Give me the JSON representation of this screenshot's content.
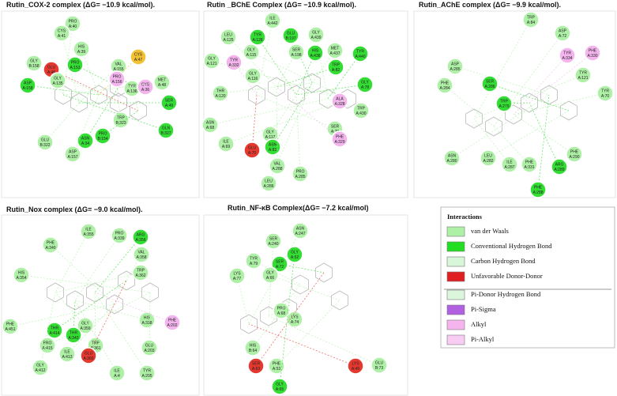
{
  "panels": [
    {
      "title": "Rutin_COX-2 complex (ΔG= −10.9 kcal/mol).",
      "residues": [
        {
          "name": "PRO",
          "id": "A:40",
          "color": "#aef0a6"
        },
        {
          "name": "CYS",
          "id": "A:41",
          "color": "#aef0a6"
        },
        {
          "name": "HIS",
          "id": "A:39",
          "color": "#aef0a6"
        },
        {
          "name": "GLY",
          "id": "B:158",
          "color": "#aef0a6"
        },
        {
          "name": "GLU",
          "id": "A:46",
          "color": "#e53930"
        },
        {
          "name": "PRO",
          "id": "A:153",
          "color": "#33dd33"
        },
        {
          "name": "GLY",
          "id": "A:135",
          "color": "#aef0a6"
        },
        {
          "name": "VAL",
          "id": "A:155",
          "color": "#aef0a6"
        },
        {
          "name": "CYS",
          "id": "A:47",
          "color": "#f2c233"
        },
        {
          "name": "PRO",
          "id": "A:156",
          "color": "#f4b4ee"
        },
        {
          "name": "TYR",
          "id": "A:136",
          "color": "#aef0a6"
        },
        {
          "name": "CYS",
          "id": "A:36",
          "color": "#f4b4ee"
        },
        {
          "name": "MET",
          "id": "A:48",
          "color": "#aef0a6"
        },
        {
          "name": "SER",
          "id": "A:49",
          "color": "#33dd33"
        },
        {
          "name": "ASP",
          "id": "A:158",
          "color": "#33dd33"
        },
        {
          "name": "TRP",
          "id": "B:323",
          "color": "#aef0a6"
        },
        {
          "name": "PRO",
          "id": "B:154",
          "color": "#33dd33"
        },
        {
          "name": "ASN",
          "id": "A:34",
          "color": "#33dd33"
        },
        {
          "name": "GLN",
          "id": "B:327",
          "color": "#33dd33"
        },
        {
          "name": "GLU",
          "id": "B:322",
          "color": "#aef0a6"
        },
        {
          "name": "ASP",
          "id": "A:157",
          "color": "#aef0a6"
        }
      ]
    },
    {
      "title": "Rutin _BChE Complex (ΔG= −10.9 kcal/mol).",
      "residues": [
        {
          "name": "ILE",
          "id": "A:442",
          "color": "#aef0a6"
        },
        {
          "name": "LEU",
          "id": "A:125",
          "color": "#aef0a6"
        },
        {
          "name": "TYR",
          "id": "A:128",
          "color": "#33dd33"
        },
        {
          "name": "GLU",
          "id": "B:197",
          "color": "#33dd33"
        },
        {
          "name": "GLY",
          "id": "A:439",
          "color": "#aef0a6"
        },
        {
          "name": "GLY",
          "id": "A:115",
          "color": "#aef0a6"
        },
        {
          "name": "TYR",
          "id": "A:332",
          "color": "#f4b4ee"
        },
        {
          "name": "SER",
          "id": "A:198",
          "color": "#aef0a6"
        },
        {
          "name": "HIS",
          "id": "A:438",
          "color": "#33dd33"
        },
        {
          "name": "MET",
          "id": "A:437",
          "color": "#aef0a6"
        },
        {
          "name": "TYR",
          "id": "A:440",
          "color": "#33dd33"
        },
        {
          "name": "GLY",
          "id": "A:121",
          "color": "#aef0a6"
        },
        {
          "name": "GLY",
          "id": "A:116",
          "color": "#aef0a6"
        },
        {
          "name": "TRP",
          "id": "A:82",
          "color": "#33dd33"
        },
        {
          "name": "GLY",
          "id": "A:78",
          "color": "#33dd33"
        },
        {
          "name": "THR",
          "id": "A:120",
          "color": "#aef0a6"
        },
        {
          "name": "TRP",
          "id": "A:430",
          "color": "#aef0a6"
        },
        {
          "name": "ALA",
          "id": "A:328",
          "color": "#f4b4ee"
        },
        {
          "name": "SER",
          "id": "A:79",
          "color": "#aef0a6"
        },
        {
          "name": "PHE",
          "id": "A:329",
          "color": "#f4b4ee"
        },
        {
          "name": "GLY",
          "id": "A:117",
          "color": "#aef0a6"
        },
        {
          "name": "ASN",
          "id": "A:83",
          "color": "#33dd33"
        },
        {
          "name": "ASN",
          "id": "A:68",
          "color": "#aef0a6"
        },
        {
          "name": "ILE",
          "id": "A:69",
          "color": "#aef0a6"
        },
        {
          "name": "GLU",
          "id": "A:70",
          "color": "#e53930"
        },
        {
          "name": "VAL",
          "id": "A:288",
          "color": "#aef0a6"
        },
        {
          "name": "PRO",
          "id": "A:285",
          "color": "#aef0a6"
        },
        {
          "name": "LEU",
          "id": "A:286",
          "color": "#aef0a6"
        }
      ]
    },
    {
      "title": "Rutin_AChE complex (ΔG= −9.9 kcal/mol).",
      "residues": [
        {
          "name": "TRP",
          "id": "A:84",
          "color": "#aef0a6"
        },
        {
          "name": "ASP",
          "id": "A:72",
          "color": "#aef0a6"
        },
        {
          "name": "TYR",
          "id": "A:334",
          "color": "#f4b4ee"
        },
        {
          "name": "PHE",
          "id": "A:330",
          "color": "#f4b4ee"
        },
        {
          "name": "ASP",
          "id": "A:285",
          "color": "#aef0a6"
        },
        {
          "name": "SER",
          "id": "A:286",
          "color": "#33dd33"
        },
        {
          "name": "TYR",
          "id": "A:121",
          "color": "#aef0a6"
        },
        {
          "name": "PHE",
          "id": "A:284",
          "color": "#aef0a6"
        },
        {
          "name": "TYR",
          "id": "A:70",
          "color": "#aef0a6"
        },
        {
          "name": "TRP",
          "id": "A:279",
          "color": "#33dd33"
        },
        {
          "name": "ASN",
          "id": "A:280",
          "color": "#aef0a6"
        },
        {
          "name": "LEU",
          "id": "A:282",
          "color": "#aef0a6"
        },
        {
          "name": "ILE",
          "id": "A:287",
          "color": "#aef0a6"
        },
        {
          "name": "PHE",
          "id": "A:331",
          "color": "#aef0a6"
        },
        {
          "name": "PHE",
          "id": "A:290",
          "color": "#aef0a6"
        },
        {
          "name": "ARG",
          "id": "A:289",
          "color": "#33dd33"
        },
        {
          "name": "PHE",
          "id": "A:288",
          "color": "#33dd33"
        }
      ]
    },
    {
      "title": "Rutin_Nox complex (ΔG= −9.0 kcal/mol).",
      "residues": [
        {
          "name": "ILE",
          "id": "A:355",
          "color": "#aef0a6"
        },
        {
          "name": "PRO",
          "id": "A:339",
          "color": "#aef0a6"
        },
        {
          "name": "ARG",
          "id": "A:356",
          "color": "#33dd33"
        },
        {
          "name": "PHE",
          "id": "A:340",
          "color": "#aef0a6"
        },
        {
          "name": "VAL",
          "id": "A:358",
          "color": "#aef0a6"
        },
        {
          "name": "HIS",
          "id": "A:354",
          "color": "#aef0a6"
        },
        {
          "name": "TRP",
          "id": "A:362",
          "color": "#aef0a6"
        },
        {
          "name": "HIS",
          "id": "A:338",
          "color": "#aef0a6"
        },
        {
          "name": "PHE",
          "id": "A:202",
          "color": "#f4b4ee"
        },
        {
          "name": "PHE",
          "id": "A:451",
          "color": "#aef0a6"
        },
        {
          "name": "THR",
          "id": "A:414",
          "color": "#33dd33"
        },
        {
          "name": "PRO",
          "id": "A:415",
          "color": "#aef0a6"
        },
        {
          "name": "GLY",
          "id": "A:359",
          "color": "#aef0a6"
        },
        {
          "name": "THR",
          "id": "A:343",
          "color": "#33dd33"
        },
        {
          "name": "TRP",
          "id": "A:361",
          "color": "#aef0a6"
        },
        {
          "name": "ILE",
          "id": "A:413",
          "color": "#aef0a6"
        },
        {
          "name": "GLU",
          "id": "A:360",
          "color": "#e53930"
        },
        {
          "name": "GLU",
          "id": "A:203",
          "color": "#aef0a6"
        },
        {
          "name": "GLY",
          "id": "A:412",
          "color": "#aef0a6"
        },
        {
          "name": "ILE",
          "id": "A:4",
          "color": "#aef0a6"
        },
        {
          "name": "TYR",
          "id": "A:205",
          "color": "#aef0a6"
        }
      ]
    },
    {
      "title": "Rutin_NF-κB Complex(ΔG= −7.2 kcal/mol)",
      "residues": [
        {
          "name": "ASN",
          "id": "A:247",
          "color": "#aef0a6"
        },
        {
          "name": "SER",
          "id": "A:240",
          "color": "#aef0a6"
        },
        {
          "name": "GLY",
          "id": "A:52",
          "color": "#33dd33"
        },
        {
          "name": "TYR",
          "id": "A:79",
          "color": "#aef0a6"
        },
        {
          "name": "SER",
          "id": "A:72",
          "color": "#33dd33"
        },
        {
          "name": "GLY",
          "id": "A:66",
          "color": "#aef0a6"
        },
        {
          "name": "LYS",
          "id": "A:77",
          "color": "#aef0a6"
        },
        {
          "name": "PRO",
          "id": "A:68",
          "color": "#aef0a6"
        },
        {
          "name": "LYS",
          "id": "A:74",
          "color": "#aef0a6"
        },
        {
          "name": "HIS",
          "id": "B:64",
          "color": "#aef0a6"
        },
        {
          "name": "SER",
          "id": "A:63",
          "color": "#e53930"
        },
        {
          "name": "PHE",
          "id": "A:53",
          "color": "#aef0a6"
        },
        {
          "name": "LYS",
          "id": "A:49",
          "color": "#e53930"
        },
        {
          "name": "GLU",
          "id": "B:73",
          "color": "#aef0a6"
        },
        {
          "name": "GLY",
          "id": "A:65",
          "color": "#33dd33"
        }
      ]
    }
  ],
  "legend": {
    "title": "Interactions",
    "items": [
      {
        "label": "van der Waals",
        "color": "#aef0a6"
      },
      {
        "label": "Conventional Hydrogen Bond",
        "color": "#22dd22"
      },
      {
        "label": "Carbon Hydrogen Bond",
        "color": "#d8f7d8"
      },
      {
        "label": "Unfavorable Donor-Donor",
        "color": "#e02020"
      },
      {
        "label": "Pi-Donor Hydrogen Bond",
        "color": "#dcf6dc"
      },
      {
        "label": "Pi-Sigma",
        "color": "#b060e0"
      },
      {
        "label": "Alkyl",
        "color": "#f5b4ee"
      },
      {
        "label": "Pi-Alkyl",
        "color": "#f9ccf3"
      }
    ]
  }
}
